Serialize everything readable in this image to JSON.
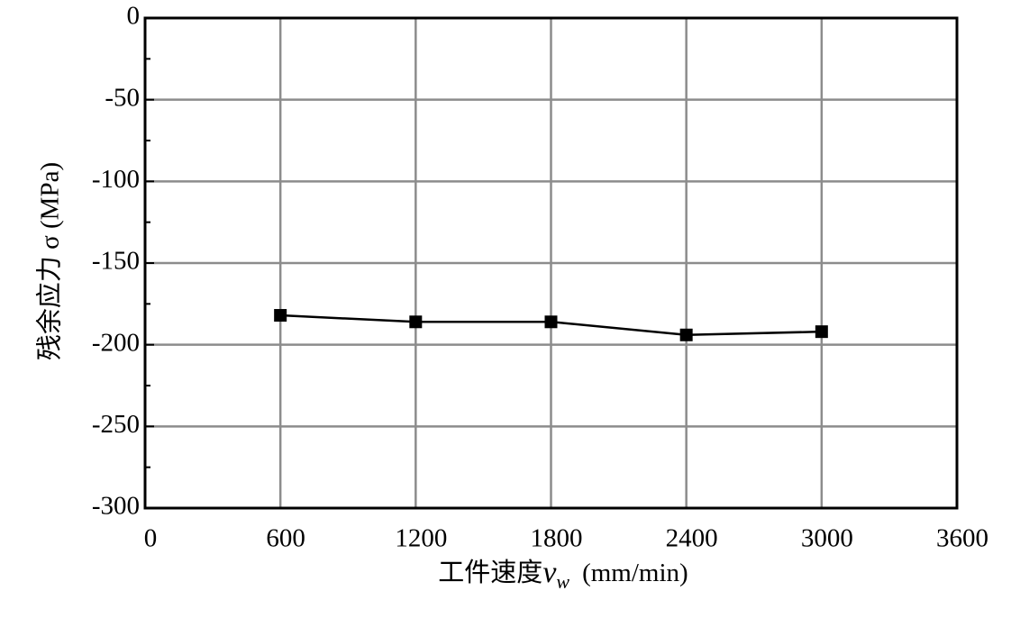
{
  "chart_data": {
    "type": "line",
    "ylabel": "残余应力 σ (MPa)",
    "xlabel": "工件速度",
    "xlabel_var": "v",
    "xlabel_sub": "w",
    "xlabel_unit": "(mm/min)",
    "x": [
      600,
      1200,
      1800,
      2400,
      3000
    ],
    "values": [
      -182,
      -186,
      -186,
      -194,
      -192
    ],
    "color": "#000000",
    "xlim": [
      0,
      3600
    ],
    "xticks": [
      0,
      600,
      1200,
      1800,
      2400,
      3000,
      3600
    ],
    "ylim": [
      -300,
      0
    ],
    "yticks": [
      0,
      -50,
      -100,
      -150,
      -200,
      -250,
      -300
    ],
    "y_minor_ticks": [
      -25,
      -75,
      -125,
      -175,
      -225,
      -275
    ],
    "grid": true
  }
}
